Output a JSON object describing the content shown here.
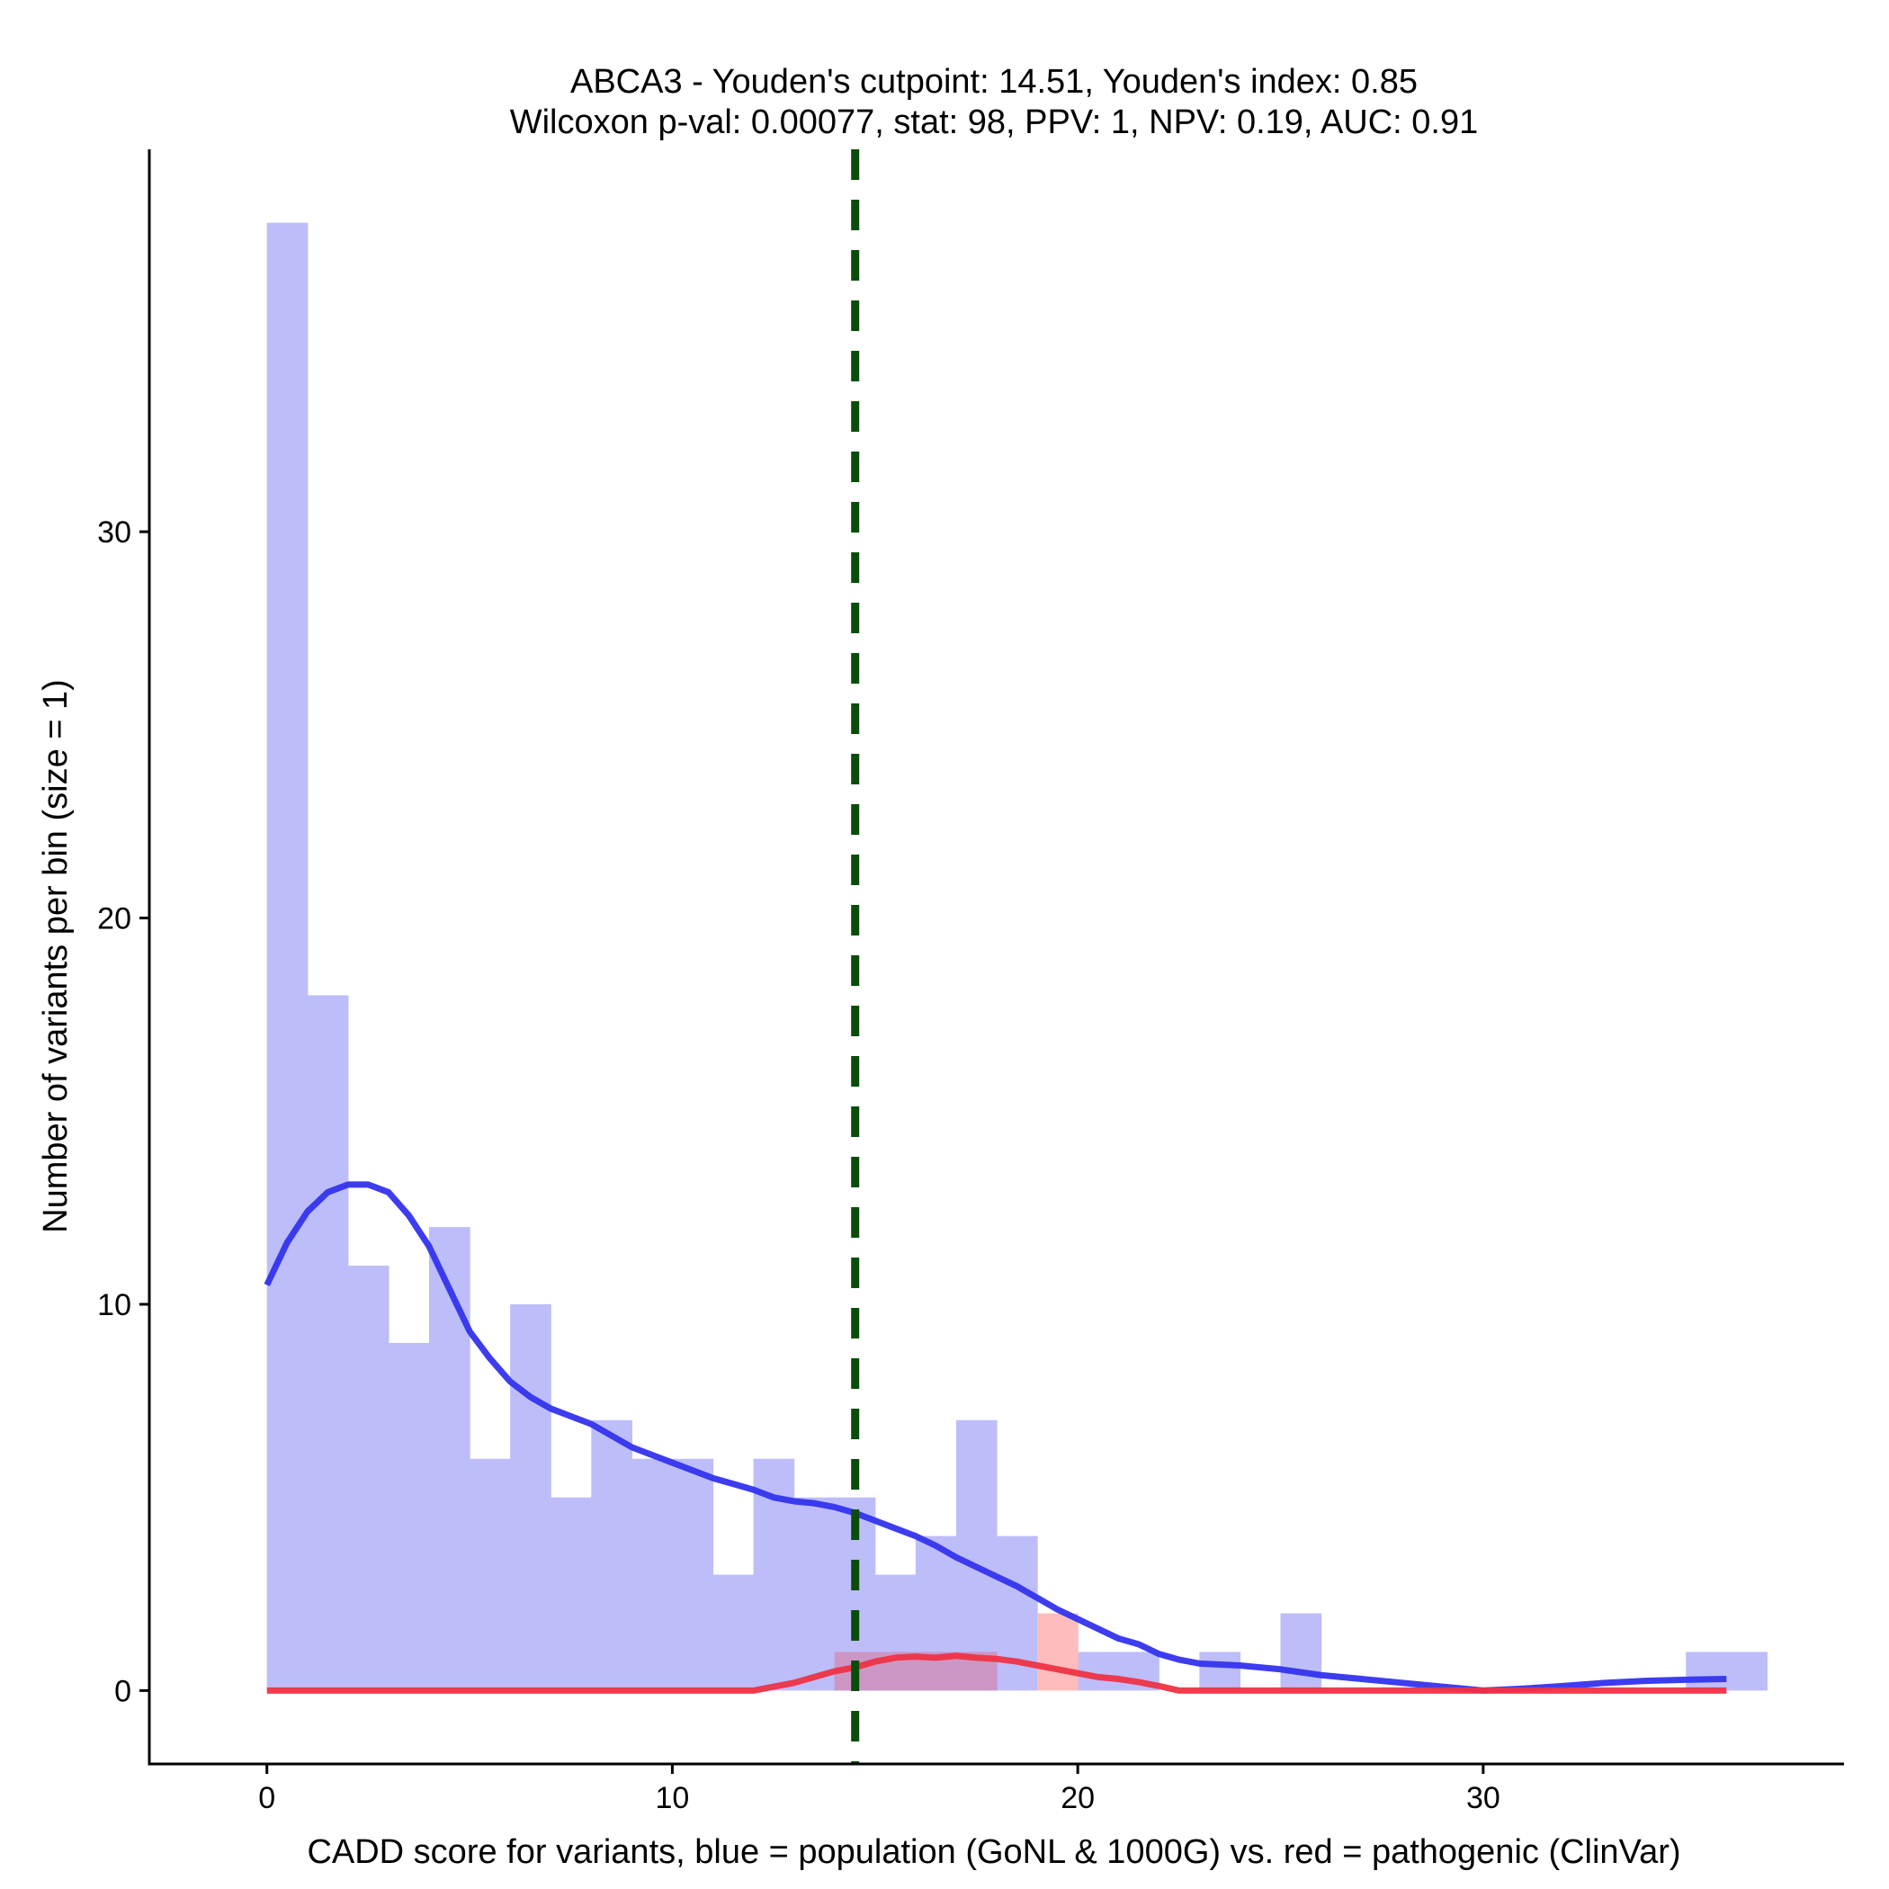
{
  "chart_data": {
    "type": "bar",
    "title_line1": "ABCA3 - Youden's cutpoint: 14.51, Youden's index: 0.85",
    "title_line2": "Wilcoxon p-val: 0.00077, stat: 98, PPV: 1, NPV: 0.19, AUC: 0.91",
    "xlabel": "CADD score for variants, blue = population (GoNL & 1000G) vs. red = pathogenic (ClinVar)",
    "ylabel": "Number of variants per bin (size = 1)",
    "xlim": [
      -2.9,
      38.9
    ],
    "ylim": [
      -1.9,
      39.9
    ],
    "x_ticks": [
      0,
      10,
      20,
      30
    ],
    "y_ticks": [
      0,
      10,
      20,
      30
    ],
    "bin_width": 1,
    "cutpoint": 14.51,
    "colors": {
      "population_bar": "#bdbdfa",
      "pathogenic_bar": "#ffbcbc",
      "overlap_bar": "#cc97c4",
      "population_density": "#3333ee",
      "pathogenic_density": "#ee3344",
      "cutpoint_line": "#0a4d0a",
      "axis": "#000000"
    },
    "series": [
      {
        "name": "population (GoNL & 1000G)",
        "bins": [
          {
            "x0": 0,
            "count": 38
          },
          {
            "x0": 1,
            "count": 18
          },
          {
            "x0": 2,
            "count": 11
          },
          {
            "x0": 3,
            "count": 9
          },
          {
            "x0": 4,
            "count": 12
          },
          {
            "x0": 5,
            "count": 6
          },
          {
            "x0": 6,
            "count": 10
          },
          {
            "x0": 7,
            "count": 5
          },
          {
            "x0": 8,
            "count": 7
          },
          {
            "x0": 9,
            "count": 6
          },
          {
            "x0": 10,
            "count": 6
          },
          {
            "x0": 11,
            "count": 3
          },
          {
            "x0": 12,
            "count": 6
          },
          {
            "x0": 13,
            "count": 5
          },
          {
            "x0": 14,
            "count": 5
          },
          {
            "x0": 15,
            "count": 3
          },
          {
            "x0": 16,
            "count": 4
          },
          {
            "x0": 17,
            "count": 7
          },
          {
            "x0": 18,
            "count": 4
          },
          {
            "x0": 20,
            "count": 1
          },
          {
            "x0": 21,
            "count": 1
          },
          {
            "x0": 23,
            "count": 1
          },
          {
            "x0": 25,
            "count": 2
          },
          {
            "x0": 35,
            "count": 1
          },
          {
            "x0": 36,
            "count": 1
          }
        ],
        "density": [
          [
            0,
            10.5
          ],
          [
            0.5,
            11.6
          ],
          [
            1,
            12.4
          ],
          [
            1.5,
            12.9
          ],
          [
            2,
            13.1
          ],
          [
            2.5,
            13.1
          ],
          [
            3,
            12.9
          ],
          [
            3.5,
            12.3
          ],
          [
            4,
            11.5
          ],
          [
            4.5,
            10.4
          ],
          [
            5,
            9.3
          ],
          [
            5.5,
            8.6
          ],
          [
            6,
            8.0
          ],
          [
            6.5,
            7.6
          ],
          [
            7,
            7.3
          ],
          [
            7.5,
            7.1
          ],
          [
            8,
            6.9
          ],
          [
            8.5,
            6.6
          ],
          [
            9,
            6.3
          ],
          [
            9.5,
            6.1
          ],
          [
            10,
            5.9
          ],
          [
            10.5,
            5.7
          ],
          [
            11,
            5.5
          ],
          [
            11.5,
            5.35
          ],
          [
            12,
            5.2
          ],
          [
            12.5,
            5.0
          ],
          [
            13,
            4.9
          ],
          [
            13.5,
            4.85
          ],
          [
            14,
            4.75
          ],
          [
            14.5,
            4.6
          ],
          [
            15,
            4.4
          ],
          [
            15.5,
            4.2
          ],
          [
            16,
            4.0
          ],
          [
            16.5,
            3.75
          ],
          [
            17,
            3.45
          ],
          [
            17.5,
            3.2
          ],
          [
            18,
            2.95
          ],
          [
            18.5,
            2.7
          ],
          [
            19,
            2.4
          ],
          [
            19.5,
            2.1
          ],
          [
            20,
            1.85
          ],
          [
            20.5,
            1.6
          ],
          [
            21,
            1.35
          ],
          [
            21.5,
            1.2
          ],
          [
            22,
            0.95
          ],
          [
            22.5,
            0.8
          ],
          [
            23,
            0.7
          ],
          [
            24,
            0.65
          ],
          [
            25,
            0.55
          ],
          [
            26,
            0.4
          ],
          [
            27,
            0.3
          ],
          [
            28,
            0.2
          ],
          [
            29,
            0.1
          ],
          [
            30,
            0.0
          ],
          [
            31,
            0.05
          ],
          [
            32,
            0.12
          ],
          [
            33,
            0.2
          ],
          [
            34,
            0.25
          ],
          [
            35,
            0.28
          ],
          [
            36,
            0.3
          ]
        ]
      },
      {
        "name": "pathogenic (ClinVar)",
        "bins": [
          {
            "x0": 14,
            "count": 1
          },
          {
            "x0": 15,
            "count": 1
          },
          {
            "x0": 16,
            "count": 1
          },
          {
            "x0": 17,
            "count": 1
          },
          {
            "x0": 19,
            "count": 2
          }
        ],
        "density": [
          [
            0,
            0
          ],
          [
            12,
            0
          ],
          [
            12.5,
            0.1
          ],
          [
            13,
            0.2
          ],
          [
            13.5,
            0.35
          ],
          [
            14,
            0.5
          ],
          [
            14.5,
            0.6
          ],
          [
            15,
            0.75
          ],
          [
            15.5,
            0.85
          ],
          [
            16,
            0.88
          ],
          [
            16.5,
            0.85
          ],
          [
            17,
            0.9
          ],
          [
            17.5,
            0.85
          ],
          [
            18,
            0.82
          ],
          [
            18.5,
            0.75
          ],
          [
            19,
            0.65
          ],
          [
            19.5,
            0.55
          ],
          [
            20,
            0.45
          ],
          [
            20.5,
            0.35
          ],
          [
            21,
            0.3
          ],
          [
            21.5,
            0.22
          ],
          [
            22,
            0.12
          ],
          [
            22.5,
            0.0
          ],
          [
            23,
            0
          ],
          [
            36,
            0
          ]
        ]
      }
    ]
  }
}
